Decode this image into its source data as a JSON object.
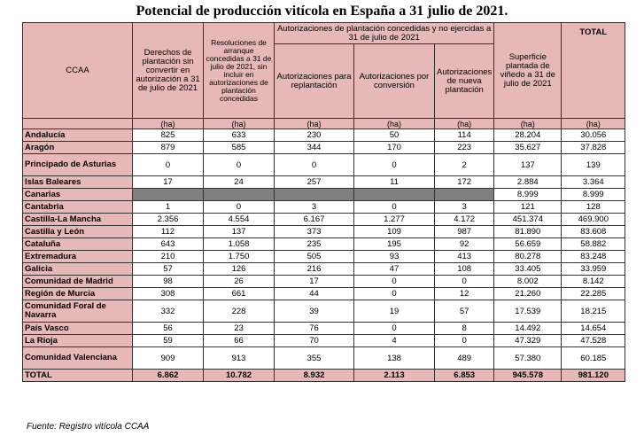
{
  "title": "Potencial de producción vitícola en España a 31 julio de 2021.",
  "header": {
    "ccaa": "CCAA",
    "col_derechos": "Derechos de plantación sin convertir en autorización a 31 de julio de 2021",
    "col_resoluciones": "Resoluciones de arranque concedidas a 31 de julio de 2021, sin incluir en autorizaciones de plantación concedidas",
    "group_autorizaciones": "Autorizaciones de plantación concedidas y no ejercidas a 31 de julio de 2021",
    "col_replantacion": "Autorizaciones para replantación",
    "col_conversion": "Autorizaciones por conversión",
    "col_nueva": "Autorizaciones de nueva plantación",
    "col_superficie": "Superficie plantada de viñedo a 31 de julio de 2021",
    "col_total": "TOTAL",
    "unit": "(ha)"
  },
  "rows": [
    {
      "name": "Andalucía",
      "v": [
        "825",
        "633",
        "230",
        "50",
        "114",
        "28.204",
        "30.056"
      ]
    },
    {
      "name": "Aragón",
      "v": [
        "879",
        "585",
        "344",
        "170",
        "223",
        "35.627",
        "37.828"
      ]
    },
    {
      "name": "Principado de Asturias",
      "v": [
        "0",
        "0",
        "0",
        "0",
        "2",
        "137",
        "139"
      ]
    },
    {
      "name": "Islas Baleares",
      "v": [
        "17",
        "24",
        "257",
        "11",
        "172",
        "2.884",
        "3.364"
      ]
    },
    {
      "name": "Canarias",
      "v": [
        "",
        "",
        "",
        "",
        "",
        "8.999",
        "8.999"
      ]
    },
    {
      "name": "Cantabria",
      "v": [
        "1",
        "0",
        "3",
        "0",
        "3",
        "121",
        "128"
      ]
    },
    {
      "name": "Castilla-La Mancha",
      "v": [
        "2.356",
        "4.554",
        "6.167",
        "1.277",
        "4.172",
        "451.374",
        "469.900"
      ]
    },
    {
      "name": "Castilla y León",
      "v": [
        "112",
        "137",
        "373",
        "109",
        "987",
        "81.890",
        "83.608"
      ]
    },
    {
      "name": "Cataluña",
      "v": [
        "643",
        "1.058",
        "235",
        "195",
        "92",
        "56.659",
        "58.882"
      ]
    },
    {
      "name": "Extremadura",
      "v": [
        "210",
        "1.750",
        "505",
        "93",
        "413",
        "80.278",
        "83.248"
      ]
    },
    {
      "name": "Galicia",
      "v": [
        "57",
        "126",
        "216",
        "47",
        "108",
        "33.405",
        "33.959"
      ]
    },
    {
      "name": "Comunidad de Madrid",
      "v": [
        "98",
        "26",
        "17",
        "0",
        "0",
        "8.002",
        "8.142"
      ]
    },
    {
      "name": "Región de Murcia",
      "v": [
        "308",
        "661",
        "44",
        "0",
        "12",
        "21.260",
        "22.285"
      ]
    },
    {
      "name": "Comunidad Foral de Navarra",
      "v": [
        "332",
        "228",
        "39",
        "19",
        "57",
        "17.539",
        "18.215"
      ]
    },
    {
      "name": "País Vasco",
      "v": [
        "56",
        "23",
        "76",
        "0",
        "8",
        "14.492",
        "14.654"
      ]
    },
    {
      "name": "La Rioja",
      "v": [
        "59",
        "66",
        "70",
        "4",
        "0",
        "47.329",
        "47.528"
      ]
    },
    {
      "name": "Comunidad Valenciana",
      "v": [
        "909",
        "913",
        "355",
        "138",
        "489",
        "57.380",
        "60.185"
      ]
    }
  ],
  "total": {
    "name": "TOTAL",
    "v": [
      "6.862",
      "10.782",
      "8.932",
      "2.113",
      "6.853",
      "945.578",
      "981.120"
    ]
  },
  "source": "Fuente: Registro vitícola CCAA",
  "colors": {
    "header_bg": "#e6b8b7",
    "blank_cell": "#7f7f7f",
    "border": "#333333"
  }
}
